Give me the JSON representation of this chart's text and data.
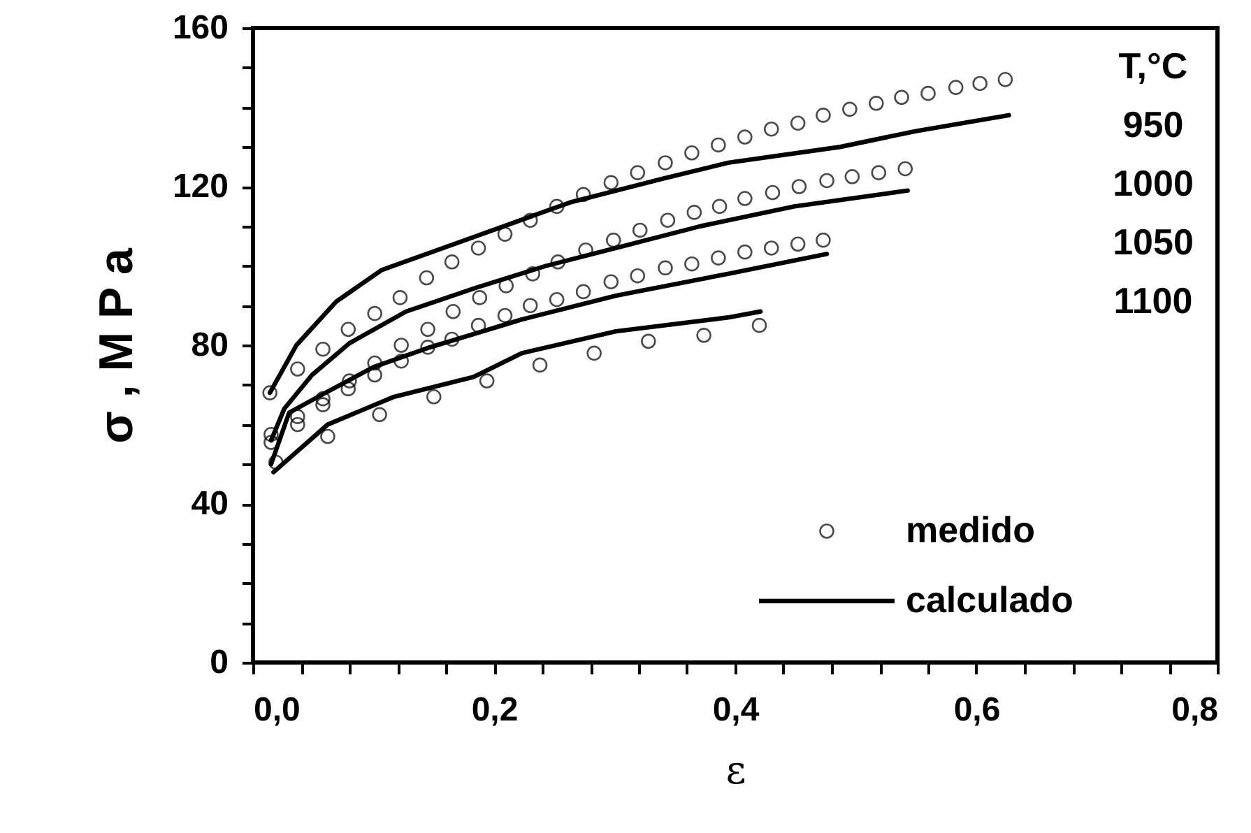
{
  "chart_data": {
    "type": "scatter",
    "xlabel": "ε",
    "ylabel": "σ , M P a",
    "xlim": [
      0,
      0.8
    ],
    "ylim": [
      0,
      160
    ],
    "xticks": [
      {
        "value": 0,
        "label": "0,0"
      },
      {
        "value": 0.04,
        "label": null
      },
      {
        "value": 0.08,
        "label": null
      },
      {
        "value": 0.12,
        "label": null
      },
      {
        "value": 0.16,
        "label": null
      },
      {
        "value": 0.2,
        "label": "0,2"
      },
      {
        "value": 0.24,
        "label": null
      },
      {
        "value": 0.28,
        "label": null
      },
      {
        "value": 0.32,
        "label": null
      },
      {
        "value": 0.36,
        "label": null
      },
      {
        "value": 0.4,
        "label": "0,4"
      },
      {
        "value": 0.44,
        "label": null
      },
      {
        "value": 0.48,
        "label": null
      },
      {
        "value": 0.52,
        "label": null
      },
      {
        "value": 0.56,
        "label": null
      },
      {
        "value": 0.6,
        "label": "0,6"
      },
      {
        "value": 0.64,
        "label": null
      },
      {
        "value": 0.68,
        "label": null
      },
      {
        "value": 0.72,
        "label": null
      },
      {
        "value": 0.76,
        "label": null
      },
      {
        "value": 0.8,
        "label": "0,8"
      }
    ],
    "yticks": [
      0,
      {
        "value": 10,
        "label": null
      },
      {
        "value": 20,
        "label": null
      },
      {
        "value": 30,
        "label": null
      },
      40,
      {
        "value": 50,
        "label": null
      },
      {
        "value": 60,
        "label": null
      },
      {
        "value": 70,
        "label": null
      },
      80,
      {
        "value": 90,
        "label": null
      },
      {
        "value": 100,
        "label": null
      },
      {
        "value": 110,
        "label": null
      },
      120,
      {
        "value": 130,
        "label": null
      },
      {
        "value": 140,
        "label": null
      },
      {
        "value": 150,
        "label": null
      },
      160
    ],
    "grid": false,
    "legend": "bottom right",
    "annotations": [
      "T,°C",
      "950",
      "1000",
      "1050",
      "1100"
    ],
    "series": [
      {
        "name": "medido",
        "marker": "circle",
        "color": "#000000",
        "x": [
          0.014,
          0.037,
          0.058,
          0.079,
          0.101,
          0.122,
          0.144,
          0.165,
          0.187,
          0.209,
          0.23,
          0.252,
          0.274,
          0.297,
          0.319,
          0.342,
          0.364,
          0.386,
          0.408,
          0.43,
          0.452,
          0.473,
          0.495,
          0.517,
          0.538,
          0.56,
          0.583,
          0.603,
          0.624
        ],
        "values": [
          68,
          74,
          79,
          84,
          88,
          92,
          97,
          101,
          104.5,
          108,
          111.5,
          115,
          118,
          121,
          123.5,
          126,
          128.5,
          130.5,
          132.5,
          134.5,
          136,
          138,
          139.5,
          141,
          142.5,
          143.5,
          145,
          146,
          147
        ]
      },
      {
        "marker": "circle",
        "color": "#000000",
        "x": [
          0.015,
          0.037,
          0.058,
          0.08,
          0.101,
          0.123,
          0.145,
          0.166,
          0.188,
          0.21,
          0.232,
          0.253,
          0.276,
          0.299,
          0.321,
          0.344,
          0.366,
          0.387,
          0.408,
          0.431,
          0.453,
          0.476,
          0.497,
          0.519,
          0.541
        ],
        "values": [
          57.5,
          62,
          66.5,
          71,
          75.5,
          80,
          84,
          88.5,
          92,
          95,
          98,
          101,
          104,
          106.5,
          109,
          111.5,
          113.5,
          115,
          117,
          118.5,
          120,
          121.5,
          122.5,
          123.5,
          124.5
        ]
      },
      {
        "marker": "circle",
        "color": "#000000",
        "x": [
          0.015,
          0.037,
          0.058,
          0.079,
          0.101,
          0.123,
          0.145,
          0.165,
          0.187,
          0.209,
          0.23,
          0.252,
          0.274,
          0.297,
          0.319,
          0.342,
          0.364,
          0.386,
          0.408,
          0.43,
          0.452,
          0.473
        ],
        "values": [
          55.5,
          60,
          65,
          69,
          72.5,
          76,
          79.5,
          81.5,
          85,
          87.5,
          90,
          91.5,
          93.5,
          96,
          97.5,
          99.5,
          100.5,
          102,
          103.5,
          104.5,
          105.5,
          106.5
        ]
      },
      {
        "marker": "circle",
        "color": "#000000",
        "x": [
          0.019,
          0.062,
          0.105,
          0.15,
          0.194,
          0.238,
          0.283,
          0.328,
          0.374,
          0.42
        ],
        "values": [
          50.5,
          57,
          62.5,
          67,
          71,
          75,
          78,
          81,
          82.5,
          85
        ]
      },
      {
        "name": "calculado",
        "type": "line",
        "color": "#000000",
        "x": [
          0.014,
          0.036,
          0.069,
          0.107,
          0.185,
          0.263,
          0.34,
          0.394,
          0.487,
          0.55,
          0.627
        ],
        "values": [
          68,
          80,
          91,
          99,
          107.5,
          116,
          122,
          126,
          130,
          134,
          138
        ]
      },
      {
        "type": "line",
        "color": "#000000",
        "x": [
          0.015,
          0.026,
          0.049,
          0.08,
          0.127,
          0.185,
          0.243,
          0.301,
          0.371,
          0.449,
          0.543
        ],
        "values": [
          56,
          64,
          72.5,
          80.5,
          88.5,
          94.5,
          100,
          104.5,
          110,
          115,
          119
        ]
      },
      {
        "type": "line",
        "color": "#000000",
        "x": [
          0.015,
          0.03,
          0.057,
          0.1,
          0.147,
          0.223,
          0.301,
          0.394,
          0.476
        ],
        "values": [
          50,
          63,
          67.5,
          74.5,
          79.5,
          86.5,
          92.5,
          98,
          103
        ]
      },
      {
        "type": "line",
        "color": "#000000",
        "x": [
          0.017,
          0.062,
          0.117,
          0.183,
          0.223,
          0.301,
          0.394,
          0.421
        ],
        "values": [
          48,
          60,
          67,
          72,
          78,
          83.5,
          87,
          88.5
        ]
      }
    ]
  }
}
